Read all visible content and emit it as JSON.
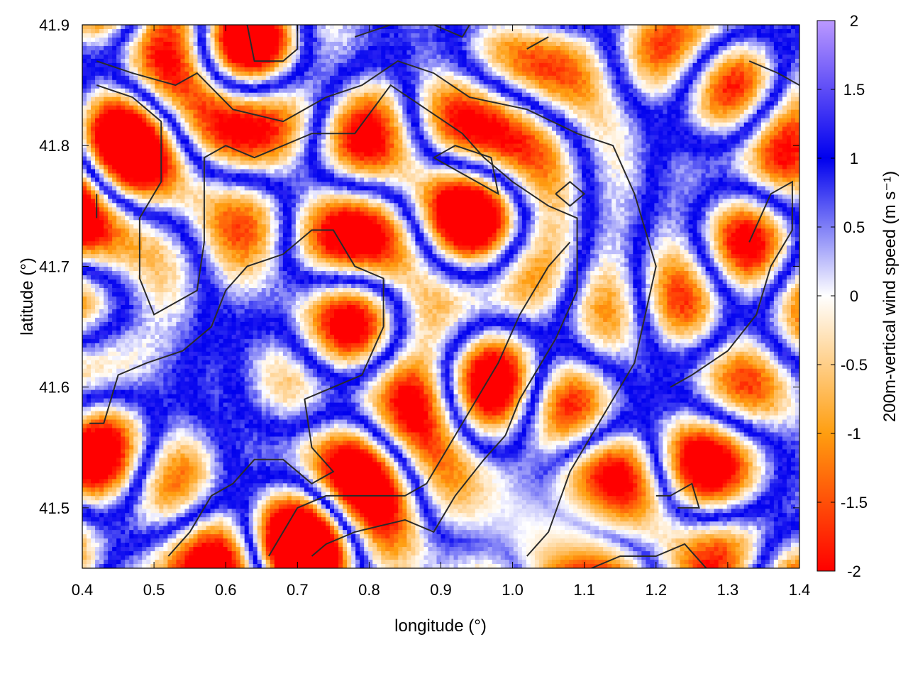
{
  "chart_data": {
    "type": "heatmap",
    "title": "",
    "xlabel": "longitude (°)",
    "ylabel": "latitude (°)",
    "xlim": [
      0.4,
      1.4
    ],
    "ylim": [
      41.45,
      41.9
    ],
    "xticks": [
      "0.4",
      "0.5",
      "0.6",
      "0.7",
      "0.8",
      "0.9",
      "1.0",
      "1.1",
      "1.2",
      "1.3",
      "1.4"
    ],
    "yticks": [
      "41.5",
      "41.6",
      "41.7",
      "41.8",
      "41.9"
    ],
    "colorbar": {
      "label": "200m-vertical wind speed (m s⁻¹)",
      "range": [
        -2,
        2
      ],
      "ticks": [
        "2",
        "1.5",
        "1",
        "0.5",
        "0",
        "-0.5",
        "-1",
        "-1.5",
        "-2"
      ],
      "colors": [
        {
          "value": -2,
          "color": "#ff0000"
        },
        {
          "value": -1,
          "color": "#ff9e10"
        },
        {
          "value": 0,
          "color": "#ffffff"
        },
        {
          "value": 1,
          "color": "#0000ee"
        },
        {
          "value": 2,
          "color": "#bb99ff"
        }
      ]
    },
    "field_description_note": null,
    "contours": [
      [
        [
          0.42,
          41.87
        ],
        [
          0.47,
          41.86
        ],
        [
          0.53,
          41.85
        ],
        [
          0.56,
          41.86
        ],
        [
          0.61,
          41.83
        ],
        [
          0.68,
          41.82
        ],
        [
          0.74,
          41.84
        ],
        [
          0.79,
          41.85
        ],
        [
          0.84,
          41.87
        ],
        [
          0.89,
          41.86
        ],
        [
          0.94,
          41.84
        ],
        [
          1.02,
          41.83
        ],
        [
          1.09,
          41.81
        ],
        [
          1.14,
          41.8
        ],
        [
          1.17,
          41.76
        ],
        [
          1.2,
          41.7
        ],
        [
          1.17,
          41.62
        ],
        [
          1.13,
          41.58
        ],
        [
          1.08,
          41.53
        ],
        [
          1.05,
          41.48
        ],
        [
          1.02,
          41.46
        ]
      ],
      [
        [
          0.42,
          41.85
        ],
        [
          0.47,
          41.84
        ],
        [
          0.51,
          41.82
        ],
        [
          0.51,
          41.77
        ],
        [
          0.48,
          41.74
        ],
        [
          0.48,
          41.69
        ],
        [
          0.5,
          41.66
        ],
        [
          0.53,
          41.67
        ],
        [
          0.56,
          41.68
        ],
        [
          0.57,
          41.72
        ],
        [
          0.57,
          41.79
        ],
        [
          0.6,
          41.8
        ],
        [
          0.64,
          41.79
        ],
        [
          0.72,
          41.81
        ],
        [
          0.78,
          41.81
        ],
        [
          0.83,
          41.85
        ],
        [
          0.88,
          41.83
        ],
        [
          0.93,
          41.81
        ],
        [
          0.96,
          41.79
        ],
        [
          1.0,
          41.77
        ],
        [
          1.05,
          41.75
        ],
        [
          1.09,
          41.74
        ],
        [
          1.09,
          41.68
        ],
        [
          1.06,
          41.64
        ],
        [
          1.01,
          41.59
        ],
        [
          0.99,
          41.56
        ],
        [
          0.96,
          41.54
        ],
        [
          0.92,
          41.51
        ],
        [
          0.89,
          41.48
        ],
        [
          0.85,
          41.49
        ],
        [
          0.78,
          41.48
        ],
        [
          0.74,
          41.47
        ],
        [
          0.72,
          41.46
        ]
      ],
      [
        [
          0.41,
          41.57
        ],
        [
          0.43,
          41.57
        ],
        [
          0.45,
          41.61
        ],
        [
          0.49,
          41.62
        ],
        [
          0.54,
          41.63
        ],
        [
          0.58,
          41.65
        ],
        [
          0.6,
          41.68
        ],
        [
          0.63,
          41.7
        ],
        [
          0.68,
          41.71
        ],
        [
          0.72,
          41.73
        ],
        [
          0.75,
          41.73
        ],
        [
          0.78,
          41.7
        ],
        [
          0.82,
          41.69
        ],
        [
          0.82,
          41.65
        ],
        [
          0.79,
          41.61
        ],
        [
          0.75,
          41.6
        ],
        [
          0.71,
          41.59
        ],
        [
          0.72,
          41.55
        ],
        [
          0.75,
          41.53
        ],
        [
          0.72,
          41.52
        ],
        [
          0.68,
          41.54
        ],
        [
          0.64,
          41.54
        ],
        [
          0.61,
          41.52
        ],
        [
          0.58,
          41.51
        ],
        [
          0.55,
          41.48
        ],
        [
          0.52,
          41.46
        ]
      ],
      [
        [
          0.66,
          41.46
        ],
        [
          0.7,
          41.5
        ],
        [
          0.74,
          41.51
        ],
        [
          0.8,
          41.51
        ],
        [
          0.85,
          41.51
        ],
        [
          0.88,
          41.52
        ],
        [
          0.91,
          41.55
        ],
        [
          0.94,
          41.58
        ],
        [
          0.98,
          41.62
        ],
        [
          1.01,
          41.66
        ],
        [
          1.05,
          41.7
        ],
        [
          1.08,
          41.72
        ]
      ],
      [
        [
          1.11,
          41.45
        ],
        [
          1.15,
          41.46
        ],
        [
          1.2,
          41.46
        ],
        [
          1.24,
          41.47
        ],
        [
          1.27,
          41.45
        ]
      ],
      [
        [
          1.2,
          41.51
        ],
        [
          1.22,
          41.51
        ],
        [
          1.25,
          41.52
        ],
        [
          1.26,
          41.5
        ],
        [
          1.23,
          41.5
        ]
      ],
      [
        [
          1.33,
          41.72
        ],
        [
          1.36,
          41.76
        ],
        [
          1.39,
          41.77
        ],
        [
          1.39,
          41.73
        ],
        [
          1.36,
          41.7
        ],
        [
          1.34,
          41.66
        ],
        [
          1.3,
          41.63
        ],
        [
          1.25,
          41.61
        ],
        [
          1.22,
          41.6
        ]
      ],
      [
        [
          1.33,
          41.87
        ],
        [
          1.37,
          41.86
        ],
        [
          1.4,
          41.85
        ]
      ],
      [
        [
          0.63,
          41.9
        ],
        [
          0.64,
          41.87
        ],
        [
          0.68,
          41.87
        ],
        [
          0.7,
          41.88
        ],
        [
          0.7,
          41.9
        ]
      ],
      [
        [
          0.78,
          41.89
        ],
        [
          0.83,
          41.9
        ],
        [
          0.89,
          41.9
        ],
        [
          0.93,
          41.89
        ],
        [
          0.94,
          41.9
        ]
      ],
      [
        [
          1.02,
          41.88
        ],
        [
          1.05,
          41.89
        ]
      ],
      [
        [
          0.89,
          41.79
        ],
        [
          0.92,
          41.8
        ],
        [
          0.97,
          41.79
        ],
        [
          0.98,
          41.76
        ],
        [
          0.95,
          41.77
        ],
        [
          0.92,
          41.78
        ],
        [
          0.89,
          41.79
        ]
      ],
      [
        [
          1.06,
          41.76
        ],
        [
          1.08,
          41.77
        ],
        [
          1.1,
          41.76
        ],
        [
          1.08,
          41.75
        ],
        [
          1.06,
          41.76
        ]
      ],
      [
        [
          0.42,
          41.76
        ],
        [
          0.42,
          41.74
        ]
      ]
    ]
  }
}
